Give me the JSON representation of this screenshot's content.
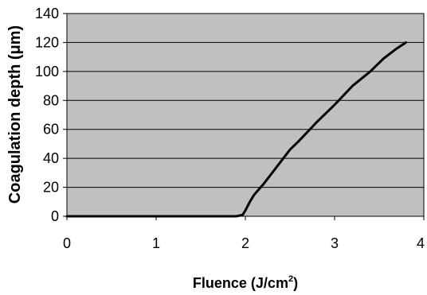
{
  "chart_data": {
    "type": "line",
    "xlabel": "Fluence (J/cm",
    "xlabel_sup": "2",
    "xlabel_end": ")",
    "ylabel": "Coagulation depth  (μm)",
    "xlim": [
      0,
      4
    ],
    "ylim": [
      0,
      140
    ],
    "xticks": [
      "0",
      "1",
      "2",
      "3",
      "4"
    ],
    "yticks": [
      "0",
      "20",
      "40",
      "60",
      "80",
      "100",
      "120",
      "140"
    ],
    "grid": "horizontal",
    "plot_background": "#c0c0c0",
    "line_color": "#000000",
    "series": [
      {
        "x": [
          0,
          1.9,
          1.97,
          2.0,
          2.05,
          2.1,
          2.2,
          2.3,
          2.4,
          2.5,
          2.6,
          2.8,
          3.0,
          3.2,
          3.4,
          3.5,
          3.55,
          3.7,
          3.8
        ],
        "y": [
          0,
          0,
          1,
          4,
          10,
          15,
          22,
          30,
          38,
          46,
          52,
          65,
          77,
          90,
          100,
          106,
          109,
          116,
          120
        ]
      }
    ]
  }
}
